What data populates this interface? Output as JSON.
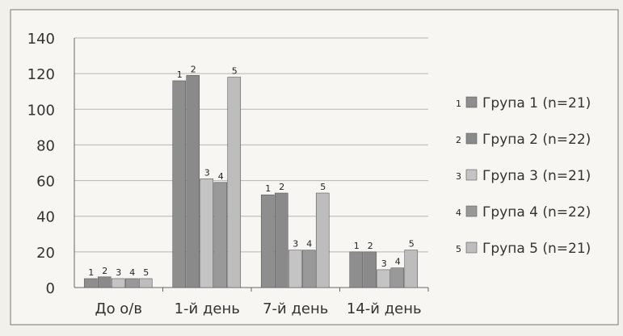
{
  "chart_data": {
    "type": "bar",
    "categories": [
      "До о/в",
      "1-й день",
      "7-й день",
      "14-й день"
    ],
    "series": [
      {
        "name": "Група 1 (n=21)",
        "values": [
          5,
          116,
          52,
          20
        ]
      },
      {
        "name": "Група 2 (n=22)",
        "values": [
          6,
          119,
          53,
          20
        ]
      },
      {
        "name": "Група 3 (n=21)",
        "values": [
          5,
          61,
          21,
          10
        ]
      },
      {
        "name": "Група 4 (n=22)",
        "values": [
          5,
          59,
          21,
          11
        ]
      },
      {
        "name": "Група 5 (n=21)",
        "values": [
          5,
          118,
          53,
          21
        ]
      }
    ],
    "bar_labels": [
      "1",
      "2",
      "3",
      "4",
      "5"
    ],
    "legend_markers": [
      "1",
      "2",
      "3",
      "4",
      "5"
    ],
    "ylim": [
      0,
      140
    ],
    "yticks": [
      0,
      20,
      40,
      60,
      80,
      100,
      120,
      140
    ],
    "grid": true,
    "legend_position": "right",
    "colors": [
      "#8e8e8e",
      "#8a8a8a",
      "#c4c4c4",
      "#999999",
      "#bdbdbd"
    ]
  }
}
